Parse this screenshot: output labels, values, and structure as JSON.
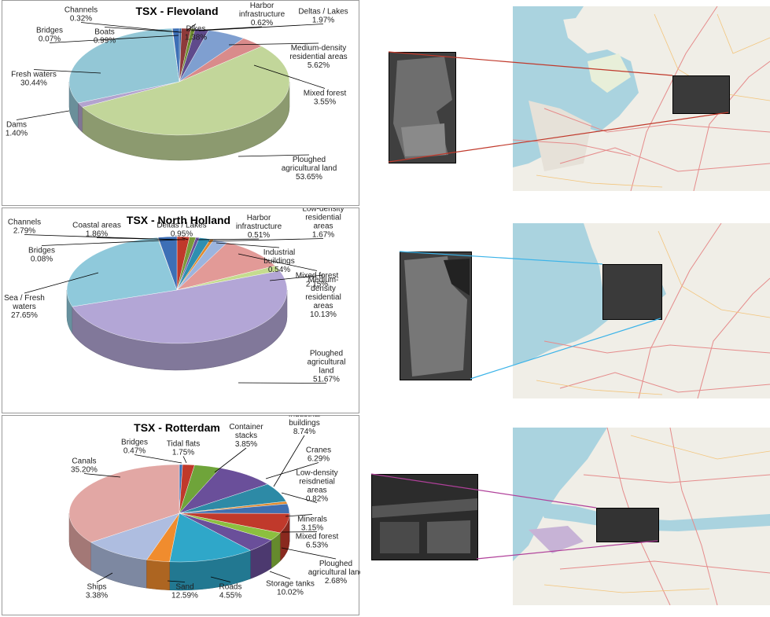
{
  "colors": {
    "red": "#c0392b",
    "cyan": "#3bb3e8",
    "magenta": "#b0409a"
  },
  "chart_data": [
    {
      "type": "pie",
      "title": "TSX - Flevoland",
      "slices": [
        {
          "name": "Channels",
          "value": 0.32,
          "label": "0.32%",
          "color": "#2e5f9c"
        },
        {
          "name": "Dikes",
          "value": 1.38,
          "label": "1.38%",
          "color": "#8e3a3a"
        },
        {
          "name": "Harbor infrastructure",
          "value": 0.62,
          "label": "0.62%",
          "color": "#6c8b2e"
        },
        {
          "name": "Deltas / Lakes",
          "value": 1.97,
          "label": "1.97%",
          "color": "#5f4a8b"
        },
        {
          "name": "Medium-density residential areas",
          "value": 5.62,
          "label": "5.62%",
          "color": "#7f9fd0"
        },
        {
          "name": "Mixed forest",
          "value": 3.55,
          "label": "3.55%",
          "color": "#d98b8b"
        },
        {
          "name": "Ploughed agricultural land",
          "value": 53.65,
          "label": "53.65%",
          "color": "#c2d69a"
        },
        {
          "name": "Dams",
          "value": 1.4,
          "label": "1.40%",
          "color": "#b3a3cf"
        },
        {
          "name": "Fresh waters",
          "value": 30.44,
          "label": "30.44%",
          "color": "#93c7d6"
        },
        {
          "name": "Bridges",
          "value": 0.07,
          "label": "0.07%",
          "color": "#f2a65a"
        },
        {
          "name": "Boats",
          "value": 0.99,
          "label": "0.99%",
          "color": "#3d6fb6"
        }
      ]
    },
    {
      "type": "pie",
      "title": "TSX - North Holland",
      "slices": [
        {
          "name": "Coastal areas",
          "value": 1.86,
          "label": "1.86%",
          "color": "#c0392b"
        },
        {
          "name": "Deltas / Lakes",
          "value": 0.95,
          "label": "0.95%",
          "color": "#7a9a3a"
        },
        {
          "name": "Harbor infrastructure",
          "value": 0.51,
          "label": "0.51%",
          "color": "#6a4f9a"
        },
        {
          "name": "Low-density residential areas",
          "value": 1.67,
          "label": "1.67%",
          "color": "#2f8fb0"
        },
        {
          "name": "Industrial buildings",
          "value": 0.54,
          "label": "0.54%",
          "color": "#e08a2e"
        },
        {
          "name": "Mixed forest",
          "value": 2.15,
          "label": "2.15%",
          "color": "#9cb4de"
        },
        {
          "name": "Medium-density residential areas",
          "value": 10.13,
          "label": "10.13%",
          "color": "#e29a97"
        },
        {
          "name": "Ploughed agricultural land (green)",
          "value": 1.67,
          "label": "",
          "color": "#c5dc8e"
        },
        {
          "name": "Ploughed agricultural land",
          "value": 51.67,
          "label": "51.67%",
          "color": "#b3a6d6"
        },
        {
          "name": "Sea / Fresh waters",
          "value": 27.65,
          "label": "27.65%",
          "color": "#8fc9db"
        },
        {
          "name": "Bridges",
          "value": 0.08,
          "label": "0.08%",
          "color": "#f2a65a"
        },
        {
          "name": "Channels",
          "value": 2.79,
          "label": "2.79%",
          "color": "#3d6fb6"
        }
      ]
    },
    {
      "type": "pie",
      "title": "TSX - Rotterdam",
      "slices": [
        {
          "name": "Bridges",
          "value": 0.47,
          "label": "0.47%",
          "color": "#3d6fb6"
        },
        {
          "name": "Tidal flats",
          "value": 1.75,
          "label": "1.75%",
          "color": "#c0392b"
        },
        {
          "name": "Container stacks",
          "value": 3.85,
          "label": "3.85%",
          "color": "#6fa43a"
        },
        {
          "name": "Industrial buildings",
          "value": 8.74,
          "label": "8.74%",
          "color": "#6a4f9a"
        },
        {
          "name": "Cranes",
          "value": 6.29,
          "label": "6.29%",
          "color": "#2d8aa6"
        },
        {
          "name": "Low-density reisdnetial areas",
          "value": 0.82,
          "label": "0.82%",
          "color": "#e08a2e"
        },
        {
          "name": "Minerals",
          "value": 3.15,
          "label": "3.15%",
          "color": "#3f6fb0"
        },
        {
          "name": "Mixed forest",
          "value": 6.53,
          "label": "6.53%",
          "color": "#c0392b"
        },
        {
          "name": "Ploughed agricultural land",
          "value": 2.68,
          "label": "2.68%",
          "color": "#8cbf3f"
        },
        {
          "name": "Roads",
          "value": 4.55,
          "label": "4.55%",
          "color": "#6a4f9a"
        },
        {
          "name": "Sand",
          "value": 12.59,
          "label": "12.59%",
          "color": "#2fa7c9"
        },
        {
          "name": "Ships",
          "value": 3.38,
          "label": "3.38%",
          "color": "#f08c2e"
        },
        {
          "name": "Storage tanks",
          "value": 10.02,
          "label": "10.02%",
          "color": "#aebde0"
        },
        {
          "name": "Canals",
          "value": 35.2,
          "label": "35.20%",
          "color": "#e2a7a4"
        }
      ]
    }
  ],
  "labels": [
    [
      {
        "lines": [
          "Channels",
          "0.32%"
        ]
      },
      {
        "lines": [
          "Bridges",
          "0.07%"
        ]
      },
      {
        "lines": [
          "Boats",
          "0.99%"
        ]
      },
      {
        "lines": [
          "Dikes",
          "1.38%"
        ]
      },
      {
        "lines": [
          "Harbor",
          "infrastructure",
          "0.62%"
        ]
      },
      {
        "lines": [
          "Deltas / Lakes",
          "1.97%"
        ]
      },
      {
        "lines": [
          "Medium-density",
          "residential areas",
          "5.62%"
        ]
      },
      {
        "lines": [
          "Mixed forest",
          "3.55%"
        ]
      },
      {
        "lines": [
          "Fresh waters",
          "30.44%"
        ]
      },
      {
        "lines": [
          "Dams",
          "1.40%"
        ]
      },
      {
        "lines": [
          "Ploughed",
          "agricultural land",
          "53.65%"
        ]
      }
    ],
    [
      {
        "lines": [
          "Channels",
          "2.79%"
        ]
      },
      {
        "lines": [
          "Coastal areas",
          "1.86%"
        ]
      },
      {
        "lines": [
          "Deltas / Lakes",
          "0.95%"
        ]
      },
      {
        "lines": [
          "Harbor",
          "infrastructure",
          "0.51%"
        ]
      },
      {
        "lines": [
          "Low-density",
          "residential",
          "areas",
          "1.67%"
        ]
      },
      {
        "lines": [
          "Bridges",
          "0.08%"
        ]
      },
      {
        "lines": [
          "Industrial",
          "buildings",
          "0.54%"
        ]
      },
      {
        "lines": [
          "Mixed forest",
          "2.15%"
        ]
      },
      {
        "lines": [
          "Sea / Fresh",
          "waters",
          "27.65%"
        ]
      },
      {
        "lines": [
          "Medium-",
          "density",
          "residential",
          "areas",
          "10.13%"
        ]
      },
      {
        "lines": [
          "Ploughed",
          "agricultural",
          "land",
          "51.67%"
        ]
      }
    ],
    [
      {
        "lines": [
          "Industrial",
          "buildings",
          "8.74%"
        ]
      },
      {
        "lines": [
          "Container",
          "stacks",
          "3.85%"
        ]
      },
      {
        "lines": [
          "Bridges",
          "0.47%"
        ]
      },
      {
        "lines": [
          "Tidal flats",
          "1.75%"
        ]
      },
      {
        "lines": [
          "Cranes",
          "6.29%"
        ]
      },
      {
        "lines": [
          "Canals",
          "35.20%"
        ]
      },
      {
        "lines": [
          "Low-density",
          "reisdnetial",
          "areas",
          "0.82%"
        ]
      },
      {
        "lines": [
          "Minerals",
          "3.15%"
        ]
      },
      {
        "lines": [
          "Mixed forest",
          "6.53%"
        ]
      },
      {
        "lines": [
          "Ploughed",
          "agricultural land",
          "2.68%"
        ]
      },
      {
        "lines": [
          "Storage tanks",
          "10.02%"
        ]
      },
      {
        "lines": [
          "Ships",
          "3.38%"
        ]
      },
      {
        "lines": [
          "Sand",
          "12.59%"
        ]
      },
      {
        "lines": [
          "Roads",
          "4.55%"
        ]
      }
    ]
  ]
}
